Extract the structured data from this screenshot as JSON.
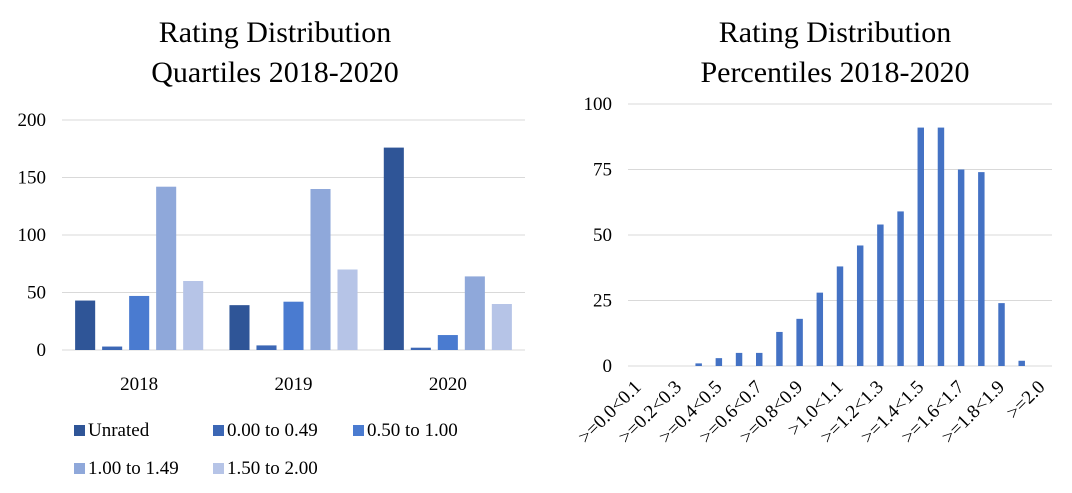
{
  "chart_data": [
    {
      "type": "bar",
      "title": [
        "Rating Distribution",
        "Quartiles 2018-2020"
      ],
      "categories": [
        "2018",
        "2019",
        "2020"
      ],
      "series": [
        {
          "name": "Unrated",
          "color": "#2f5597",
          "values": [
            43,
            39,
            176
          ]
        },
        {
          "name": "0.00 to 0.49",
          "color": "#3c67b5",
          "values": [
            3,
            4,
            2
          ]
        },
        {
          "name": "0.50 to 1.00",
          "color": "#4a7bd0",
          "values": [
            47,
            42,
            13
          ]
        },
        {
          "name": "1.00 to 1.49",
          "color": "#8fa8da",
          "values": [
            142,
            140,
            64
          ]
        },
        {
          "name": "1.50 to 2.00",
          "color": "#b6c4e7",
          "values": [
            60,
            70,
            40
          ]
        }
      ],
      "ylim": [
        0,
        200
      ],
      "yticks": [
        0,
        50,
        100,
        150,
        200
      ],
      "grid": true,
      "legend": "bottom"
    },
    {
      "type": "bar",
      "title": [
        "Rating Distribution",
        "Percentiles 2018-2020"
      ],
      "categories": [
        ">=0.0<0.1",
        null,
        ">=0.2<0.3",
        null,
        ">=0.4<0.5",
        null,
        ">=0.6<0.7",
        null,
        ">=0.8<0.9",
        null,
        ">1.0<1.1",
        null,
        ">=1.2<1.3",
        null,
        ">=1.4<1.5",
        null,
        ">=1.6<1.7",
        null,
        ">=1.8<1.9",
        null,
        ">=2.0"
      ],
      "values": [
        0,
        0,
        0,
        1,
        3,
        5,
        5,
        13,
        18,
        28,
        38,
        46,
        54,
        59,
        91,
        91,
        75,
        74,
        24,
        2,
        0
      ],
      "color": "#4472c4",
      "ylim": [
        0,
        100
      ],
      "yticks": [
        0,
        25,
        50,
        75,
        100
      ],
      "grid": true
    }
  ]
}
